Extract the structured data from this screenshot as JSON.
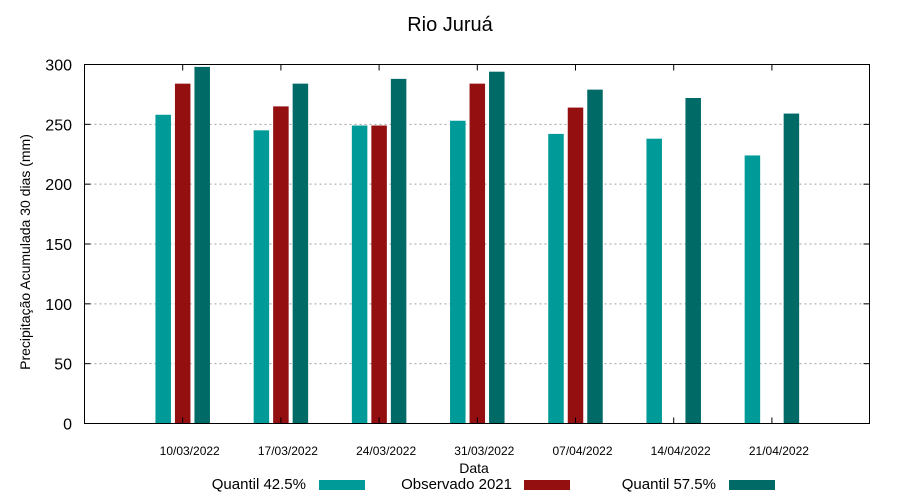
{
  "chart_data": {
    "type": "bar",
    "title": "Rio Juruá",
    "xlabel": "Data",
    "ylabel": "Precipitação Acumulada 30 dias (mm)",
    "ylim": [
      0,
      300
    ],
    "yticks": [
      0,
      50,
      100,
      150,
      200,
      250,
      300
    ],
    "grid": true,
    "legend_position": "bottom",
    "categories": [
      "10/03/2022",
      "17/03/2022",
      "24/03/2022",
      "31/03/2022",
      "07/04/2022",
      "14/04/2022",
      "21/04/2022"
    ],
    "series": [
      {
        "name": "Quantil 42.5%",
        "color": "#009a98",
        "values": [
          258,
          245,
          249,
          253,
          242,
          238,
          224
        ]
      },
      {
        "name": "Observado 2021",
        "color": "#930f10",
        "values": [
          284,
          265,
          249,
          284,
          264,
          null,
          null
        ]
      },
      {
        "name": "Quantil 57.5%",
        "color": "#006a67",
        "values": [
          298,
          284,
          288,
          294,
          279,
          272,
          259
        ]
      }
    ]
  },
  "legend": {
    "items": [
      {
        "label": "Quantil 42.5%",
        "color": "#009a98"
      },
      {
        "label": "Observado 2021",
        "color": "#930f10"
      },
      {
        "label": "Quantil 57.5%",
        "color": "#006a67"
      }
    ]
  }
}
